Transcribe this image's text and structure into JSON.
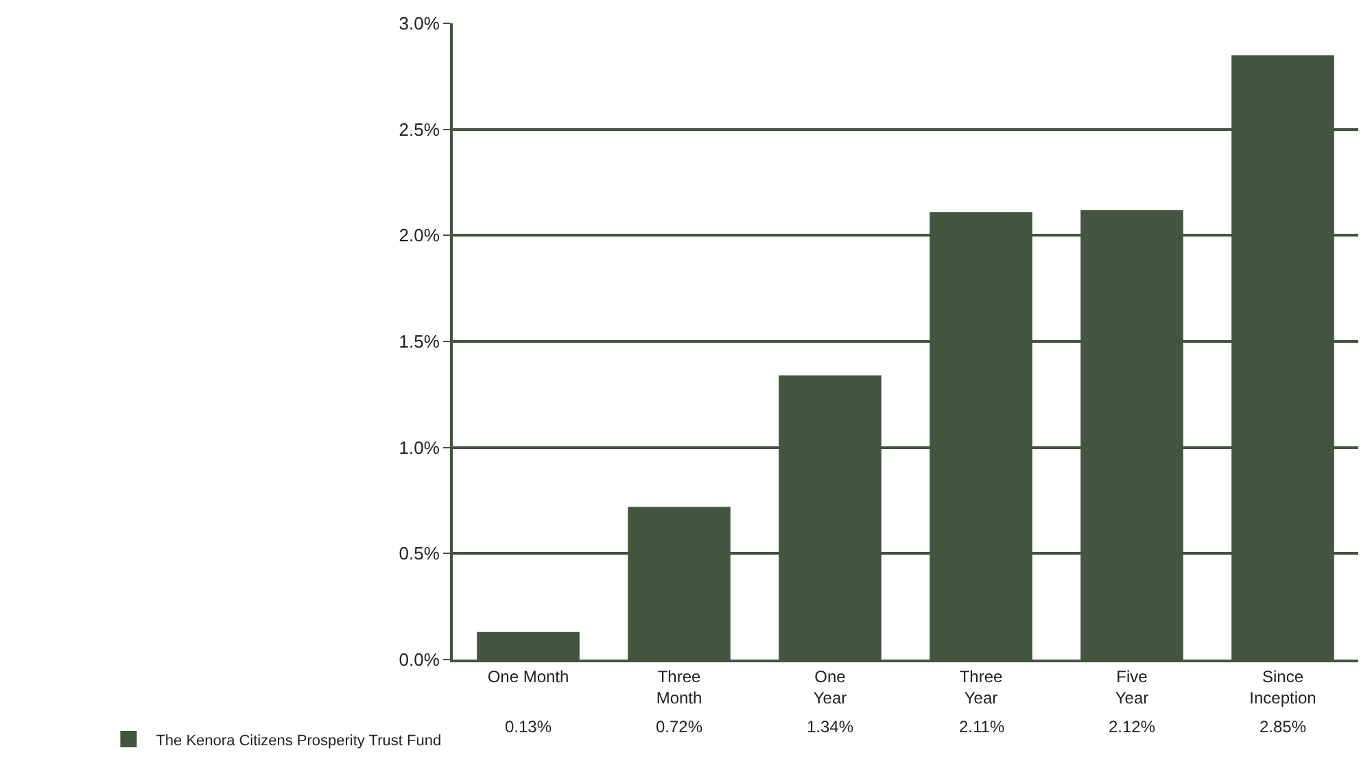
{
  "chart_data": {
    "type": "bar",
    "categories": [
      "One Month",
      "Three\nMonth",
      "One\nYear",
      "Three\nYear",
      "Five\nYear",
      "Since\nInception"
    ],
    "series": [
      {
        "name": "The Kenora Citizens Prosperity Trust Fund",
        "color": "#43543f",
        "values": [
          0.13,
          0.72,
          1.34,
          2.11,
          2.12,
          2.85
        ],
        "value_labels": [
          "0.13%",
          "0.72%",
          "1.34%",
          "2.11%",
          "2.12%",
          "2.85%"
        ]
      }
    ],
    "ylim": [
      0,
      3
    ],
    "yticks": [
      {
        "value": 0,
        "label": "0.0%"
      },
      {
        "value": 0.5,
        "label": "0.5%"
      },
      {
        "value": 1,
        "label": "1.0%"
      },
      {
        "value": 1.5,
        "label": "1.5%"
      },
      {
        "value": 2,
        "label": "2.0%"
      },
      {
        "value": 2.5,
        "label": "2.5%"
      },
      {
        "value": 3,
        "label": "3.0%"
      }
    ],
    "grid": "y",
    "legend": "bottom left"
  }
}
